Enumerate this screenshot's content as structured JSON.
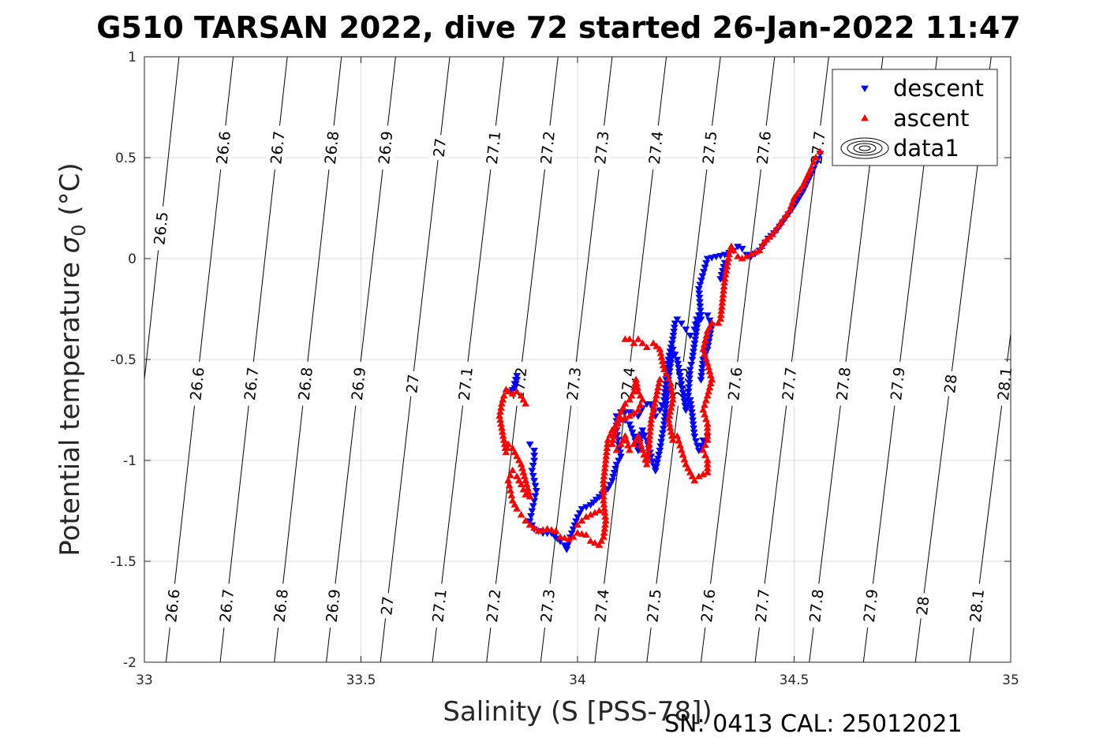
{
  "chart_data": {
    "type": "scatter",
    "title": "G510 TARSAN 2022, dive 72 started 26-Jan-2022 11:47",
    "xlabel": "Salinity (S [PSS-78])",
    "ylabel_main": "Potential temperature ",
    "ylabel_sigma": "σ",
    "ylabel_sub": "0",
    "ylabel_unit": " (°C)",
    "footer": "SN: 0413  CAL: 25012021",
    "xlim": [
      33,
      35
    ],
    "ylim": [
      -2,
      1
    ],
    "xticks": [
      33,
      33.5,
      34,
      34.5,
      35
    ],
    "xtick_labels": [
      "33",
      "33.5",
      "34",
      "34.5",
      "35"
    ],
    "yticks": [
      -2,
      -1.5,
      -1,
      -0.5,
      0,
      0.5,
      1
    ],
    "ytick_labels": [
      "-2",
      "-1.5",
      "-1",
      "-0.5",
      "0",
      "0.5",
      "1"
    ],
    "grid": true,
    "legend_position": "top-right",
    "legend": [
      {
        "name": "descent",
        "marker": "triangle-down",
        "color": "#0000ff"
      },
      {
        "name": "ascent",
        "marker": "triangle-up",
        "color": "#ff0000"
      },
      {
        "name": "data1",
        "marker": "contour",
        "color": "#000000"
      }
    ],
    "isopycnals": {
      "levels": [
        26.5,
        26.6,
        26.7,
        26.8,
        26.9,
        27,
        27.1,
        27.2,
        27.3,
        27.4,
        27.5,
        27.6,
        27.7,
        27.8,
        27.9,
        28,
        28.1
      ],
      "labels": [
        "26.5",
        "26.6",
        "26.7",
        "26.8",
        "26.9",
        "27",
        "27.1",
        "27.2",
        "27.3",
        "27.4",
        "27.5",
        "27.6",
        "27.7",
        "27.8",
        "27.9",
        "28",
        "28.1"
      ],
      "salinity_at_bottom": [
        32.93,
        33.05,
        33.175,
        33.3,
        33.42,
        33.545,
        33.665,
        33.79,
        33.915,
        34.04,
        34.16,
        34.285,
        34.41,
        34.535,
        34.66,
        34.78,
        34.905
      ],
      "salinity_at_top": [
        33.08,
        33.205,
        33.33,
        33.455,
        33.58,
        33.705,
        33.83,
        33.955,
        34.08,
        34.205,
        34.33,
        34.455,
        34.58,
        34.705,
        34.83,
        34.955,
        35.08
      ],
      "label_rows": [
        {
          "temperature": 0.55,
          "levels": [
            "26.6",
            "26.7",
            "26.8",
            "26.9",
            "27",
            "27.1",
            "27.2",
            "27.3",
            "27.4",
            "27.5",
            "27.6",
            "27.7"
          ]
        },
        {
          "temperature": 0.15,
          "levels": [
            "26.5"
          ]
        },
        {
          "temperature": -0.62,
          "levels": [
            "26.6",
            "26.7",
            "26.8",
            "26.9",
            "27",
            "27.1",
            "27.2",
            "27.3",
            "27.4",
            "27.5",
            "27.6",
            "27.7",
            "27.8",
            "27.9",
            "28",
            "28.1"
          ]
        },
        {
          "temperature": -1.72,
          "levels": [
            "26.6",
            "26.7",
            "26.8",
            "26.9",
            "27",
            "27.1",
            "27.2",
            "27.3",
            "27.4",
            "27.5",
            "27.6",
            "27.7",
            "27.8",
            "27.9",
            "28",
            "28.1"
          ]
        }
      ]
    },
    "series": [
      {
        "name": "descent",
        "marker": "triangle-down",
        "color": "#0000ff",
        "path": [
          [
            33.86,
            -0.58
          ],
          [
            33.855,
            -0.62
          ],
          [
            33.85,
            -0.65
          ],
          [
            33.845,
            -0.66
          ],
          [
            33.855,
            -0.64
          ],
          [
            33.86,
            -0.6
          ],
          [
            33.89,
            -0.92
          ],
          [
            33.9,
            -0.95
          ],
          [
            33.9,
            -1.0
          ],
          [
            33.895,
            -1.05
          ],
          [
            33.9,
            -1.1
          ],
          [
            33.905,
            -1.15
          ],
          [
            33.9,
            -1.2
          ],
          [
            33.895,
            -1.25
          ],
          [
            33.89,
            -1.3
          ],
          [
            33.9,
            -1.34
          ],
          [
            33.92,
            -1.36
          ],
          [
            33.94,
            -1.36
          ],
          [
            33.96,
            -1.4
          ],
          [
            33.97,
            -1.42
          ],
          [
            33.975,
            -1.44
          ],
          [
            33.98,
            -1.4
          ],
          [
            33.99,
            -1.34
          ],
          [
            34.0,
            -1.28
          ],
          [
            34.01,
            -1.24
          ],
          [
            34.03,
            -1.22
          ],
          [
            34.05,
            -1.18
          ],
          [
            34.07,
            -1.14
          ],
          [
            34.08,
            -1.1
          ],
          [
            34.09,
            -1.02
          ],
          [
            34.1,
            -0.98
          ],
          [
            34.095,
            -0.92
          ],
          [
            34.09,
            -0.85
          ],
          [
            34.09,
            -0.78
          ],
          [
            34.1,
            -0.76
          ],
          [
            34.12,
            -0.76
          ],
          [
            34.14,
            -0.78
          ],
          [
            34.15,
            -0.74
          ],
          [
            34.16,
            -0.72
          ],
          [
            34.17,
            -0.72
          ],
          [
            34.18,
            -0.78
          ],
          [
            34.19,
            -0.75
          ],
          [
            34.2,
            -0.7
          ],
          [
            34.205,
            -0.6
          ],
          [
            34.21,
            -0.5
          ],
          [
            34.22,
            -0.4
          ],
          [
            34.225,
            -0.32
          ],
          [
            34.23,
            -0.3
          ],
          [
            34.24,
            -0.32
          ],
          [
            34.25,
            -0.35
          ],
          [
            34.26,
            -0.38
          ],
          [
            34.27,
            -0.35
          ],
          [
            34.275,
            -0.3
          ],
          [
            34.28,
            -0.28
          ],
          [
            34.265,
            -0.5
          ],
          [
            34.26,
            -0.55
          ],
          [
            34.255,
            -0.7
          ],
          [
            34.25,
            -0.75
          ],
          [
            34.24,
            -0.62
          ],
          [
            34.23,
            -0.5
          ],
          [
            34.22,
            -0.45
          ],
          [
            34.21,
            -0.6
          ],
          [
            34.2,
            -0.82
          ],
          [
            34.19,
            -0.95
          ],
          [
            34.18,
            -1.05
          ],
          [
            34.17,
            -0.98
          ],
          [
            34.16,
            -0.9
          ],
          [
            34.15,
            -0.85
          ],
          [
            34.14,
            -0.95
          ],
          [
            34.13,
            -0.88
          ],
          [
            34.12,
            -0.82
          ],
          [
            34.11,
            -0.8
          ],
          [
            34.26,
            -0.7
          ],
          [
            34.265,
            -0.78
          ],
          [
            34.27,
            -0.88
          ],
          [
            34.28,
            -0.95
          ],
          [
            34.29,
            -0.9
          ],
          [
            34.3,
            -0.88
          ],
          [
            34.285,
            -0.6
          ],
          [
            34.29,
            -0.5
          ],
          [
            34.3,
            -0.45
          ],
          [
            34.31,
            -0.33
          ],
          [
            34.3,
            -0.28
          ],
          [
            34.285,
            -0.3
          ],
          [
            34.28,
            -0.15
          ],
          [
            34.3,
            0.0
          ],
          [
            34.32,
            0.01
          ],
          [
            34.34,
            0.02
          ],
          [
            34.36,
            0.04
          ],
          [
            34.37,
            0.06
          ],
          [
            34.38,
            0.05
          ],
          [
            34.39,
            0.02
          ],
          [
            34.4,
            0.01
          ],
          [
            34.42,
            0.04
          ],
          [
            34.44,
            0.1
          ],
          [
            34.46,
            0.14
          ],
          [
            34.48,
            0.2
          ],
          [
            34.5,
            0.26
          ],
          [
            34.52,
            0.33
          ],
          [
            34.54,
            0.42
          ],
          [
            34.55,
            0.47
          ],
          [
            34.56,
            0.52
          ],
          [
            34.335,
            -0.08
          ],
          [
            34.34,
            -0.02
          ],
          [
            34.33,
            -0.1
          ]
        ]
      },
      {
        "name": "ascent",
        "marker": "triangle-up",
        "color": "#ff0000",
        "path": [
          [
            34.56,
            0.53
          ],
          [
            34.55,
            0.5
          ],
          [
            34.54,
            0.45
          ],
          [
            34.52,
            0.36
          ],
          [
            34.5,
            0.3
          ],
          [
            34.49,
            0.24
          ],
          [
            34.47,
            0.18
          ],
          [
            34.45,
            0.12
          ],
          [
            34.43,
            0.08
          ],
          [
            34.42,
            0.04
          ],
          [
            34.4,
            0.02
          ],
          [
            34.38,
            0.0
          ],
          [
            34.37,
            0.01
          ],
          [
            34.36,
            0.04
          ],
          [
            34.355,
            0.06
          ],
          [
            34.35,
            0.02
          ],
          [
            34.345,
            -0.04
          ],
          [
            34.34,
            -0.1
          ],
          [
            34.335,
            -0.2
          ],
          [
            34.33,
            -0.3
          ],
          [
            34.325,
            -0.32
          ],
          [
            34.31,
            -0.32
          ],
          [
            34.3,
            -0.36
          ],
          [
            34.29,
            -0.45
          ],
          [
            34.3,
            -0.52
          ],
          [
            34.31,
            -0.6
          ],
          [
            34.3,
            -0.68
          ],
          [
            34.29,
            -0.75
          ],
          [
            34.3,
            -0.82
          ],
          [
            34.3,
            -0.9
          ],
          [
            34.29,
            -0.95
          ],
          [
            34.3,
            -1.0
          ],
          [
            34.3,
            -1.06
          ],
          [
            34.28,
            -1.08
          ],
          [
            34.27,
            -1.1
          ],
          [
            34.26,
            -1.06
          ],
          [
            34.25,
            -1.02
          ],
          [
            34.24,
            -0.95
          ],
          [
            34.23,
            -0.88
          ],
          [
            34.22,
            -0.9
          ],
          [
            34.21,
            -0.8
          ],
          [
            34.22,
            -0.7
          ],
          [
            34.215,
            -0.62
          ],
          [
            34.2,
            -0.55
          ],
          [
            34.19,
            -0.45
          ],
          [
            34.175,
            -0.42
          ],
          [
            34.16,
            -0.44
          ],
          [
            34.15,
            -0.42
          ],
          [
            34.14,
            -0.4
          ],
          [
            34.13,
            -0.42
          ],
          [
            34.12,
            -0.4
          ],
          [
            34.11,
            -0.4
          ],
          [
            34.19,
            -0.6
          ],
          [
            34.18,
            -0.7
          ],
          [
            34.17,
            -0.8
          ],
          [
            34.165,
            -0.92
          ],
          [
            34.16,
            -1.02
          ],
          [
            34.15,
            -0.95
          ],
          [
            34.14,
            -0.88
          ],
          [
            34.13,
            -0.92
          ],
          [
            34.12,
            -0.95
          ],
          [
            34.11,
            -0.88
          ],
          [
            34.1,
            -0.92
          ],
          [
            34.09,
            -0.95
          ],
          [
            34.08,
            -0.92
          ],
          [
            34.09,
            -0.82
          ],
          [
            34.1,
            -0.76
          ],
          [
            34.11,
            -0.72
          ],
          [
            34.12,
            -0.7
          ],
          [
            34.13,
            -0.66
          ],
          [
            34.135,
            -0.6
          ],
          [
            34.14,
            -0.66
          ],
          [
            34.15,
            -0.7
          ],
          [
            34.14,
            -0.75
          ],
          [
            34.12,
            -0.78
          ],
          [
            34.1,
            -0.8
          ],
          [
            34.08,
            -0.85
          ],
          [
            34.07,
            -0.9
          ],
          [
            34.065,
            -1.0
          ],
          [
            34.06,
            -1.1
          ],
          [
            34.06,
            -1.2
          ],
          [
            34.065,
            -1.3
          ],
          [
            34.06,
            -1.38
          ],
          [
            34.05,
            -1.42
          ],
          [
            34.04,
            -1.41
          ],
          [
            34.03,
            -1.4
          ],
          [
            34.02,
            -1.37
          ],
          [
            34.0,
            -1.36
          ],
          [
            33.99,
            -1.38
          ],
          [
            33.98,
            -1.39
          ],
          [
            33.96,
            -1.38
          ],
          [
            33.95,
            -1.35
          ],
          [
            33.93,
            -1.34
          ],
          [
            33.91,
            -1.35
          ],
          [
            33.89,
            -1.32
          ],
          [
            33.88,
            -1.3
          ],
          [
            33.87,
            -1.27
          ],
          [
            33.86,
            -1.24
          ],
          [
            33.85,
            -1.2
          ],
          [
            33.845,
            -1.15
          ],
          [
            33.84,
            -1.1
          ],
          [
            33.85,
            -1.05
          ],
          [
            33.86,
            -1.08
          ],
          [
            33.87,
            -1.12
          ],
          [
            33.88,
            -1.17
          ],
          [
            33.89,
            -1.18
          ],
          [
            33.87,
            -1.02
          ],
          [
            33.86,
            -0.98
          ],
          [
            33.85,
            -0.94
          ],
          [
            33.84,
            -0.92
          ],
          [
            33.835,
            -0.96
          ],
          [
            33.83,
            -0.9
          ],
          [
            33.825,
            -0.84
          ],
          [
            33.82,
            -0.78
          ],
          [
            33.825,
            -0.72
          ],
          [
            33.83,
            -0.68
          ],
          [
            33.835,
            -0.65
          ],
          [
            33.84,
            -0.66
          ],
          [
            33.85,
            -0.67
          ],
          [
            33.86,
            -0.66
          ],
          [
            33.87,
            -0.68
          ],
          [
            33.875,
            -0.7
          ],
          [
            33.88,
            -0.72
          ],
          [
            34.0,
            -1.32
          ],
          [
            34.01,
            -1.3
          ],
          [
            34.02,
            -1.28
          ],
          [
            34.03,
            -1.27
          ],
          [
            34.04,
            -1.26
          ],
          [
            34.05,
            -1.25
          ]
        ]
      }
    ]
  }
}
